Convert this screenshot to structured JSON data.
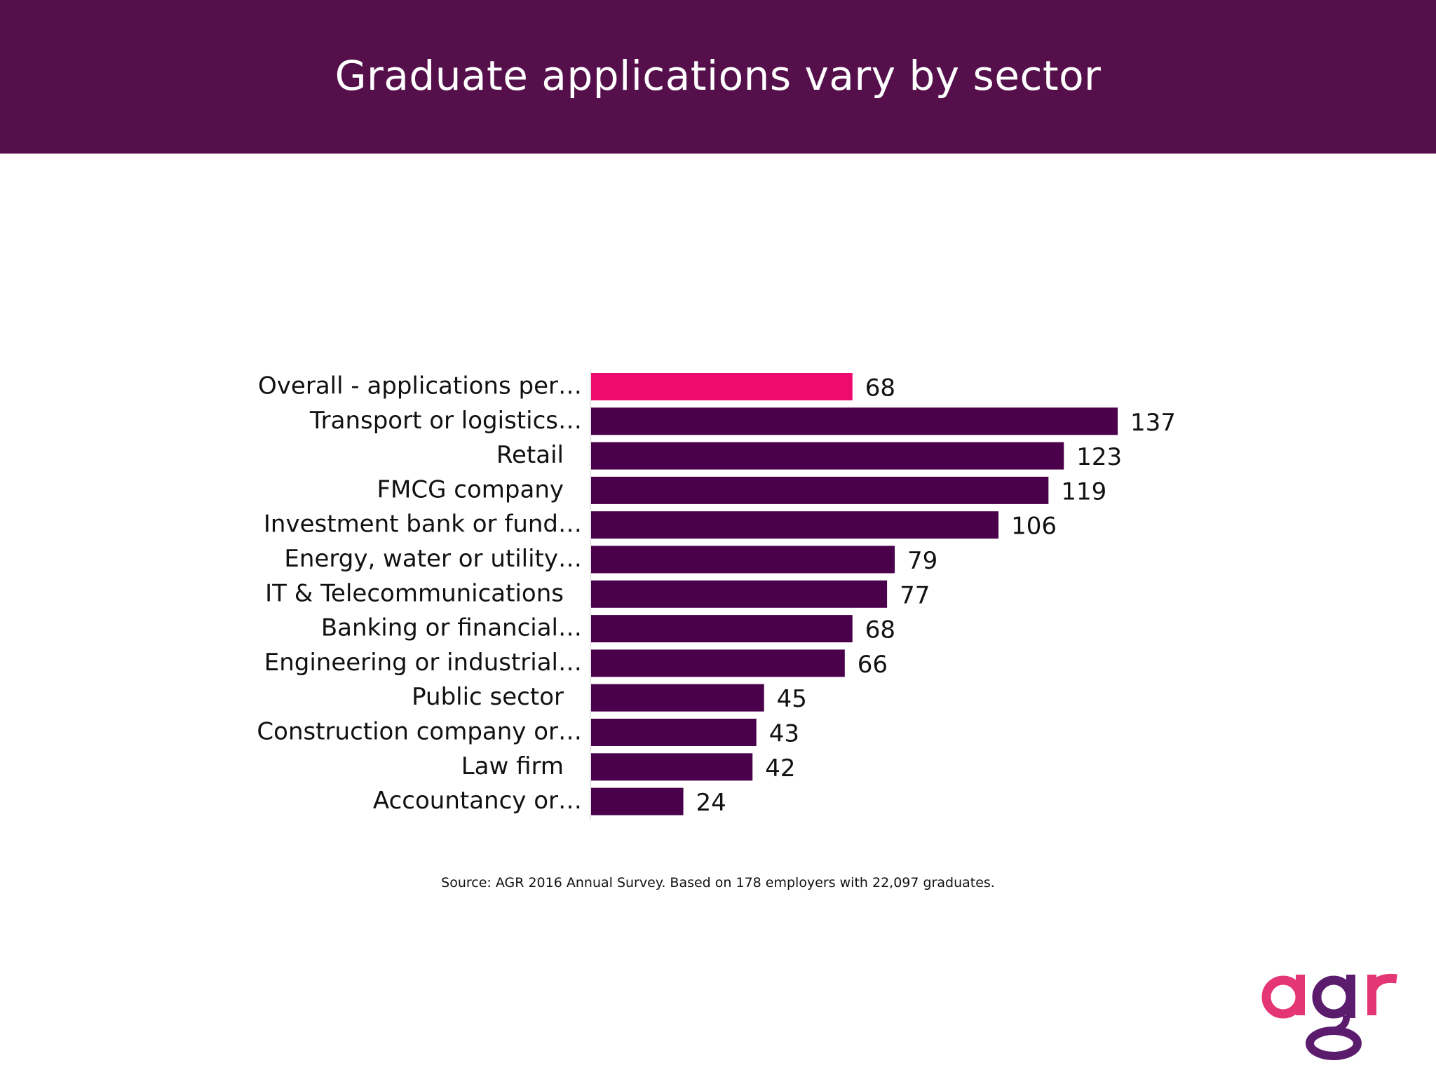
{
  "header": {
    "title": "Graduate applications vary by sector"
  },
  "chart_data": {
    "type": "bar",
    "orientation": "horizontal",
    "title": "Graduate applications vary by sector",
    "xlabel": "",
    "ylabel": "",
    "xlim": [
      0,
      137
    ],
    "grid": false,
    "legend": "none",
    "categories": [
      "Overall - applications per…",
      "Transport or logistics…",
      "Retail",
      "FMCG company",
      "Investment bank or fund…",
      "Energy, water or utility…",
      "IT & Telecommunications",
      "Banking or financial…",
      "Engineering or industrial…",
      "Public sector",
      "Construction company or…",
      "Law firm",
      "Accountancy or…"
    ],
    "values": [
      68,
      137,
      123,
      119,
      106,
      79,
      77,
      68,
      66,
      45,
      43,
      42,
      24
    ],
    "data_labels": [
      "68",
      "137",
      "123",
      "119",
      "106",
      "79",
      "77",
      "68",
      "66",
      "45",
      "43",
      "42",
      "24"
    ],
    "colors": {
      "highlight": "#ee0a6f",
      "bar": "#4a004b"
    },
    "highlight_index": 0
  },
  "footer": {
    "source": "Source: AGR 2016 Annual Survey. Based on 178 employers with 22,097 graduates."
  },
  "logo": {
    "text": "agr",
    "colors": {
      "a_r": "#e43574",
      "g": "#5b1c6e"
    }
  },
  "colors": {
    "header_bg": "#55104b",
    "header_text": "#ffffff"
  }
}
